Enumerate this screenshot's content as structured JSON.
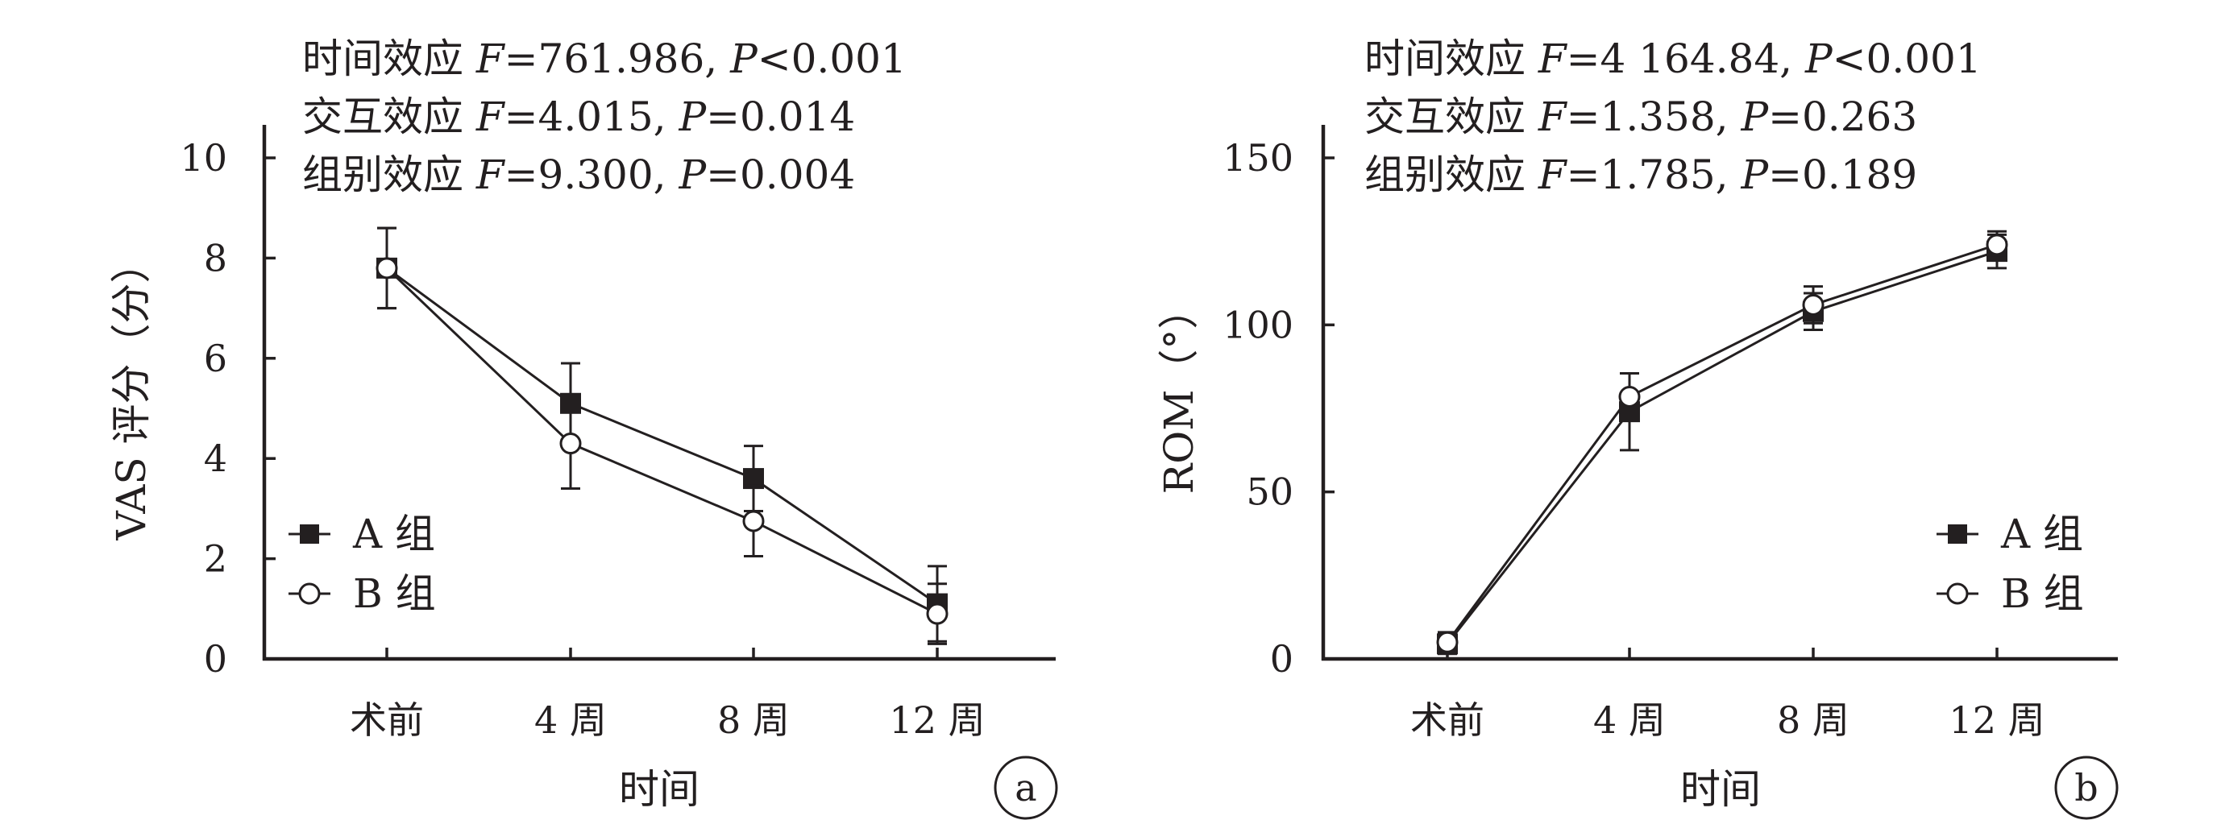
{
  "colors": {
    "ink": "#231f20",
    "background": "#ffffff"
  },
  "chart_data": [
    {
      "type": "line",
      "panel_label": "a",
      "stats": [
        {
          "prefix": "时间效应 ",
          "f_label": "F",
          "f_value": "=761.986, ",
          "p_label": "P",
          "p_value": "<0.001"
        },
        {
          "prefix": "交互效应 ",
          "f_label": "F",
          "f_value": "=4.015, ",
          "p_label": "P",
          "p_value": "=0.014"
        },
        {
          "prefix": "组别效应 ",
          "f_label": "F",
          "f_value": "=9.300, ",
          "p_label": "P",
          "p_value": "=0.004"
        }
      ],
      "xlabel": "时间",
      "ylabel": "VAS 评分（分）",
      "categories": [
        "术前",
        "4 周",
        "8 周",
        "12 周"
      ],
      "ylim": [
        0,
        10
      ],
      "yticks": [
        0,
        2,
        4,
        6,
        8,
        10
      ],
      "legend_position": "bottom-left",
      "series": [
        {
          "name": "A 组",
          "marker": "filled-square",
          "values": [
            7.8,
            5.1,
            3.6,
            1.1
          ],
          "errors": [
            0.8,
            0.8,
            0.65,
            0.75
          ]
        },
        {
          "name": "B 组",
          "marker": "open-circle",
          "values": [
            7.8,
            4.3,
            2.75,
            0.9
          ],
          "errors": [
            0.8,
            0.9,
            0.7,
            0.6
          ]
        }
      ]
    },
    {
      "type": "line",
      "panel_label": "b",
      "stats": [
        {
          "prefix": "时间效应 ",
          "f_label": "F",
          "f_value": "=4 164.84, ",
          "p_label": "P",
          "p_value": "<0.001"
        },
        {
          "prefix": "交互效应 ",
          "f_label": "F",
          "f_value": "=1.358, ",
          "p_label": "P",
          "p_value": "=0.263"
        },
        {
          "prefix": "组别效应 ",
          "f_label": "F",
          "f_value": "=1.785, ",
          "p_label": "P",
          "p_value": "=0.189"
        }
      ],
      "xlabel": "时间",
      "ylabel": "ROM（°）",
      "categories": [
        "术前",
        "4 周",
        "8 周",
        "12 周"
      ],
      "ylim": [
        0,
        150
      ],
      "yticks": [
        0,
        50,
        100,
        150
      ],
      "legend_position": "bottom-right",
      "series": [
        {
          "name": "A 组",
          "marker": "filled-square",
          "values": [
            4.5,
            74,
            104,
            122
          ],
          "errors": [
            3,
            11.5,
            5.5,
            5
          ]
        },
        {
          "name": "B 组",
          "marker": "open-circle",
          "values": [
            5,
            78.5,
            106,
            124
          ],
          "errors": [
            3,
            7,
            5.5,
            4
          ]
        }
      ]
    }
  ]
}
